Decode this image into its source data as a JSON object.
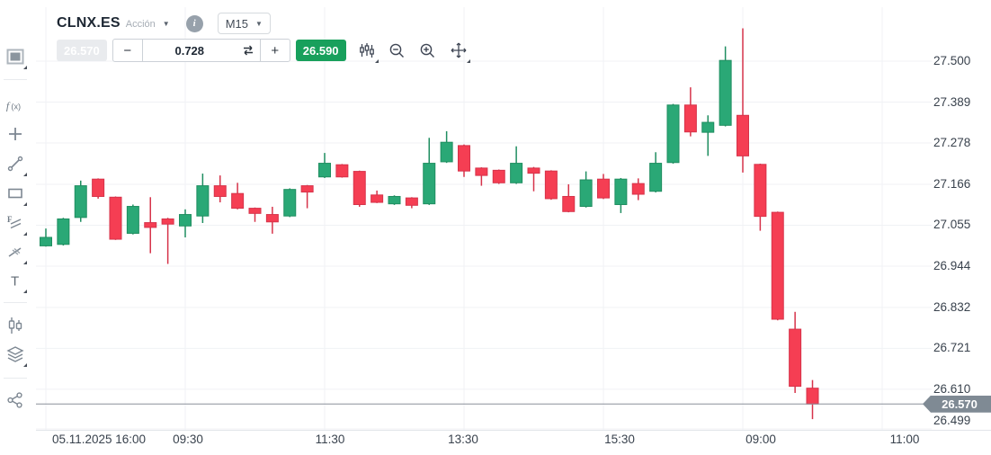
{
  "header": {
    "symbol": "CLNX.ES",
    "instrument_type": "Acción",
    "timeframe": "M15",
    "info_icon_label": "i"
  },
  "toolbar": {
    "sell_price": "26.570",
    "minus_label": "−",
    "volume": "0.728",
    "plus_label": "+",
    "buy_price": "26.590",
    "icons": [
      "chart-type-settings-icon",
      "zoom-out-icon",
      "zoom-in-icon",
      "pan-move-icon"
    ]
  },
  "sidebar": {
    "tools": [
      "chart-window-icon",
      "function-indicator-icon",
      "add-icon",
      "trend-line-icon",
      "rectangle-tool-icon",
      "fibonacci-icon",
      "pattern-tool-icon",
      "text-tool-icon",
      "compare-candles-icon",
      "layers-icon",
      "share-icon"
    ]
  },
  "price_axis": {
    "labels": [
      "27.500",
      "27.389",
      "27.278",
      "27.166",
      "27.055",
      "26.944",
      "26.832",
      "26.721",
      "26.610",
      "26.499"
    ],
    "current_price": "26.570"
  },
  "time_axis": {
    "labels": [
      "05.11.2025 16:00",
      "09:30",
      "11:30",
      "13:30",
      "15:30",
      "09:00",
      "11:00"
    ]
  },
  "colors": {
    "up_fill": "#2aa876",
    "up_stroke": "#1f8e60",
    "down_fill": "#f53e53",
    "down_stroke": "#d6334a",
    "grid": "#f0f2f5",
    "current_price_line": "#8b909a",
    "price_badge_bg": "#7f8a94",
    "buy_badge_bg": "#18a05c",
    "sell_badge_bg": "#e9ebee",
    "axis_text": "#39424d"
  },
  "chart_data": {
    "type": "candlestick",
    "title": "CLNX.ES M15",
    "ylim": [
      26.499,
      27.5
    ],
    "current_price": 26.57,
    "y_tick_labels": [
      27.5,
      27.389,
      27.278,
      27.166,
      27.055,
      26.944,
      26.832,
      26.721,
      26.61,
      26.499
    ],
    "x_tick_labels": [
      "05.11.2025 16:00",
      "09:30",
      "11:30",
      "13:30",
      "15:30",
      "09:00",
      "11:00"
    ],
    "candles_ohlc": [
      [
        26.999,
        27.046,
        26.997,
        27.022
      ],
      [
        27.003,
        27.075,
        27.0,
        27.072
      ],
      [
        27.076,
        27.176,
        27.064,
        27.162
      ],
      [
        27.18,
        27.182,
        27.127,
        27.133
      ],
      [
        27.131,
        27.133,
        27.015,
        27.017
      ],
      [
        27.033,
        27.111,
        27.03,
        27.106
      ],
      [
        27.062,
        27.131,
        26.979,
        27.049
      ],
      [
        27.072,
        27.075,
        26.95,
        27.058
      ],
      [
        27.053,
        27.098,
        27.022,
        27.084
      ],
      [
        27.08,
        27.195,
        27.061,
        27.162
      ],
      [
        27.162,
        27.19,
        27.117,
        27.133
      ],
      [
        27.141,
        27.17,
        27.098,
        27.101
      ],
      [
        27.101,
        27.103,
        27.064,
        27.087
      ],
      [
        27.084,
        27.105,
        27.032,
        27.064
      ],
      [
        27.08,
        27.155,
        27.077,
        27.152
      ],
      [
        27.162,
        27.164,
        27.101,
        27.145
      ],
      [
        27.186,
        27.251,
        27.183,
        27.223
      ],
      [
        27.219,
        27.221,
        27.184,
        27.186
      ],
      [
        27.201,
        27.203,
        27.105,
        27.111
      ],
      [
        27.137,
        27.149,
        27.115,
        27.117
      ],
      [
        27.113,
        27.136,
        27.11,
        27.133
      ],
      [
        27.129,
        27.131,
        27.101,
        27.109
      ],
      [
        27.113,
        27.292,
        27.11,
        27.223
      ],
      [
        27.227,
        27.31,
        27.224,
        27.28
      ],
      [
        27.271,
        27.274,
        27.186,
        27.202
      ],
      [
        27.21,
        27.212,
        27.162,
        27.19
      ],
      [
        27.204,
        27.206,
        27.167,
        27.17
      ],
      [
        27.17,
        27.269,
        27.167,
        27.223
      ],
      [
        27.21,
        27.213,
        27.147,
        27.196
      ],
      [
        27.202,
        27.204,
        27.124,
        27.127
      ],
      [
        27.133,
        27.166,
        27.09,
        27.092
      ],
      [
        27.106,
        27.201,
        27.103,
        27.178
      ],
      [
        27.18,
        27.194,
        27.126,
        27.129
      ],
      [
        27.111,
        27.183,
        27.088,
        27.18
      ],
      [
        27.168,
        27.182,
        27.123,
        27.139
      ],
      [
        27.147,
        27.253,
        27.144,
        27.223
      ],
      [
        27.225,
        27.384,
        27.222,
        27.381
      ],
      [
        27.381,
        27.429,
        27.296,
        27.308
      ],
      [
        27.307,
        27.353,
        27.243,
        27.334
      ],
      [
        27.326,
        27.54,
        27.323,
        27.502
      ],
      [
        27.353,
        27.589,
        27.198,
        27.243
      ],
      [
        27.22,
        27.222,
        27.04,
        27.079
      ],
      [
        27.09,
        27.092,
        26.797,
        26.8
      ],
      [
        26.773,
        26.82,
        26.6,
        26.618
      ],
      [
        26.613,
        26.635,
        26.529,
        26.57
      ]
    ]
  }
}
